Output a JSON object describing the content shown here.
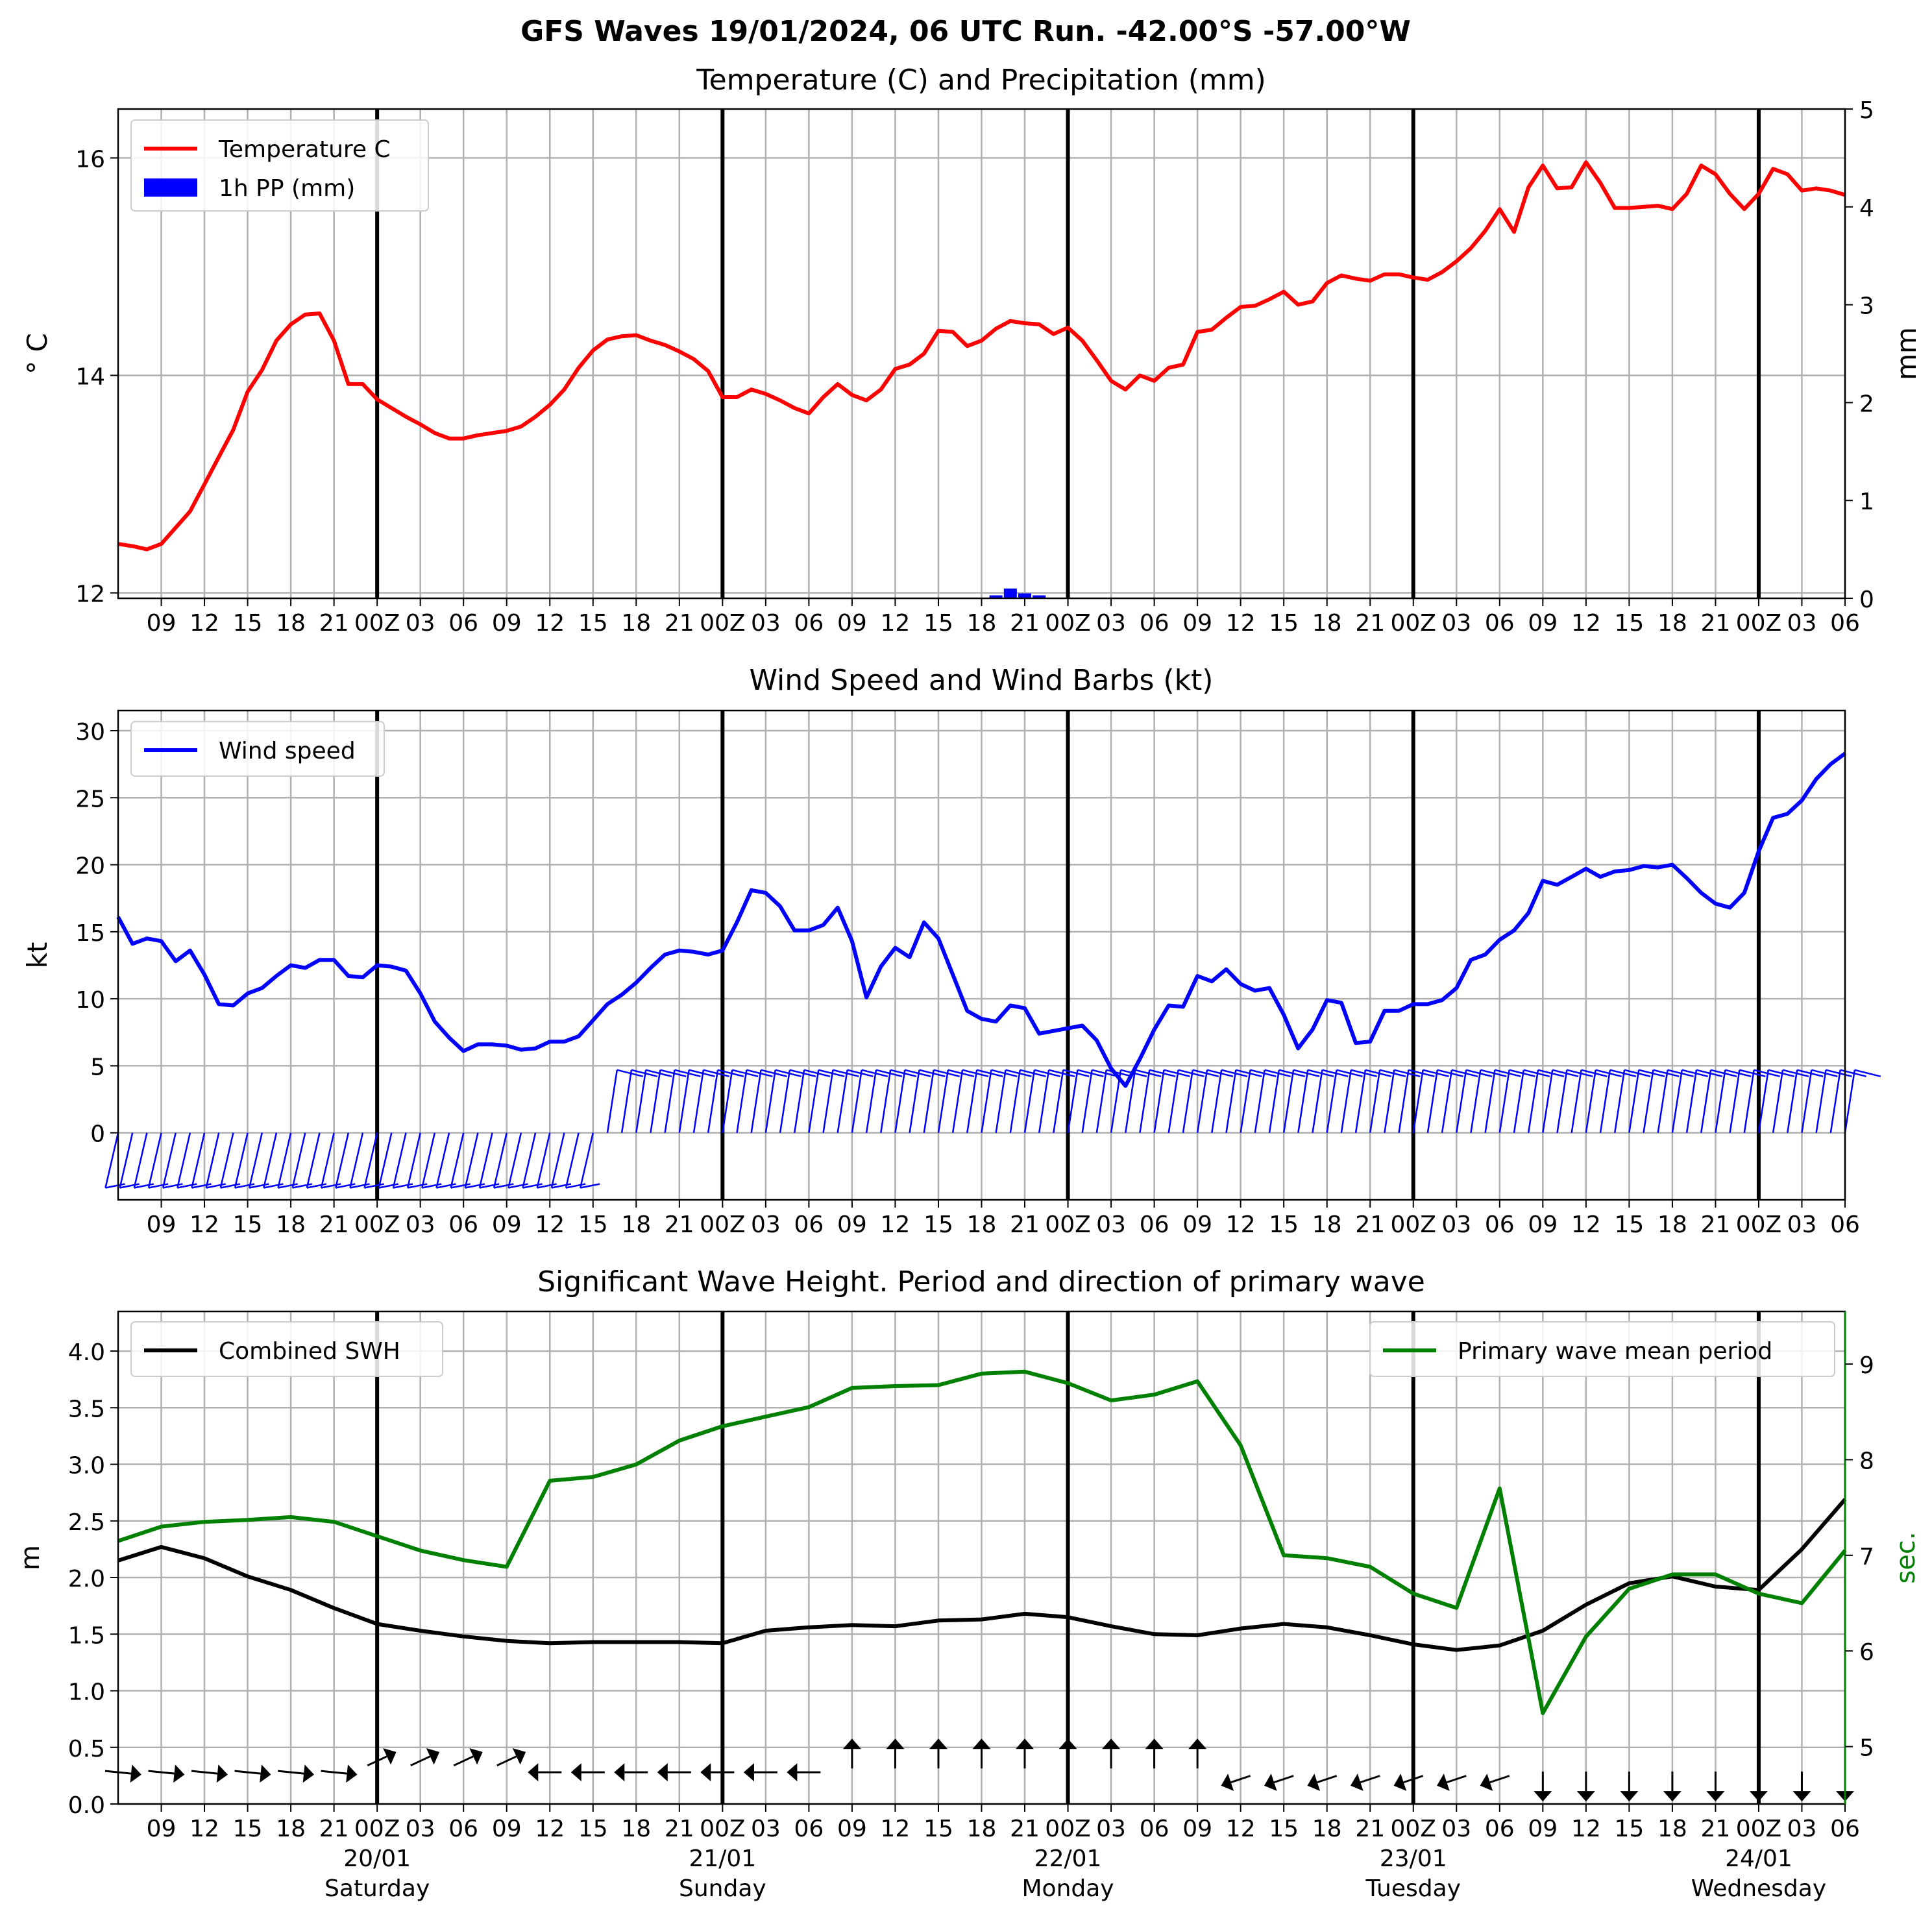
{
  "figure": {
    "title": "GFS Waves 19/01/2024, 06 UTC Run. -42.00°S -57.00°W"
  },
  "colors": {
    "temperature": "#ff0000",
    "precip": "#0000ff",
    "wind": "#0000ff",
    "swh": "#000000",
    "period": "#008000",
    "grid": "#b0b0b0"
  },
  "time_axis": {
    "hours_from": "19/01/2024 06 UTC",
    "hour_ticks": [
      {
        "h": 3,
        "label": "09"
      },
      {
        "h": 6,
        "label": "12"
      },
      {
        "h": 9,
        "label": "15"
      },
      {
        "h": 12,
        "label": "18"
      },
      {
        "h": 15,
        "label": "21"
      },
      {
        "h": 18,
        "label": "00Z"
      },
      {
        "h": 21,
        "label": "03"
      },
      {
        "h": 24,
        "label": "06"
      },
      {
        "h": 27,
        "label": "09"
      },
      {
        "h": 30,
        "label": "12"
      },
      {
        "h": 33,
        "label": "15"
      },
      {
        "h": 36,
        "label": "18"
      },
      {
        "h": 39,
        "label": "21"
      },
      {
        "h": 42,
        "label": "00Z"
      },
      {
        "h": 45,
        "label": "03"
      },
      {
        "h": 48,
        "label": "06"
      },
      {
        "h": 51,
        "label": "09"
      },
      {
        "h": 54,
        "label": "12"
      },
      {
        "h": 57,
        "label": "15"
      },
      {
        "h": 60,
        "label": "18"
      },
      {
        "h": 63,
        "label": "21"
      },
      {
        "h": 66,
        "label": "00Z"
      },
      {
        "h": 69,
        "label": "03"
      },
      {
        "h": 72,
        "label": "06"
      },
      {
        "h": 75,
        "label": "09"
      },
      {
        "h": 78,
        "label": "12"
      },
      {
        "h": 81,
        "label": "15"
      },
      {
        "h": 84,
        "label": "18"
      },
      {
        "h": 87,
        "label": "21"
      },
      {
        "h": 90,
        "label": "00Z"
      },
      {
        "h": 93,
        "label": "03"
      },
      {
        "h": 96,
        "label": "06"
      },
      {
        "h": 99,
        "label": "09"
      },
      {
        "h": 102,
        "label": "12"
      },
      {
        "h": 105,
        "label": "15"
      },
      {
        "h": 108,
        "label": "18"
      },
      {
        "h": 111,
        "label": "21"
      },
      {
        "h": 114,
        "label": "00Z"
      },
      {
        "h": 117,
        "label": "03"
      },
      {
        "h": 120,
        "label": "06"
      }
    ],
    "day_lines": [
      18,
      42,
      66,
      90,
      114
    ],
    "day_labels": [
      {
        "h": 18,
        "date": "20/01",
        "weekday": "Saturday"
      },
      {
        "h": 42,
        "date": "21/01",
        "weekday": "Sunday"
      },
      {
        "h": 66,
        "date": "22/01",
        "weekday": "Monday"
      },
      {
        "h": 90,
        "date": "23/01",
        "weekday": "Tuesday"
      },
      {
        "h": 114,
        "date": "24/01",
        "weekday": "Wednesday"
      }
    ]
  },
  "chart_data": [
    {
      "type": "line",
      "title": "Temperature (C) and Precipitation (mm)",
      "ylabel": "$^\\circ$C",
      "ylabel_right": "mm",
      "ylim": [
        11.95,
        16.45
      ],
      "y_ticks": [
        12,
        14,
        16
      ],
      "ylim_right": [
        0,
        5
      ],
      "y_ticks_right": [
        0,
        1,
        2,
        3,
        4,
        5
      ],
      "legend": [
        "Temperature C",
        "1h PP (mm)"
      ],
      "legend_loc": "upper left",
      "temperature": {
        "name": "Temperature C",
        "x": [
          0,
          1,
          2,
          3,
          4,
          5,
          6,
          7,
          8,
          9,
          10,
          11,
          12,
          13,
          14,
          15,
          16,
          17,
          18,
          19,
          20,
          21,
          22,
          23,
          24,
          25,
          26,
          27,
          28,
          29,
          30,
          31,
          32,
          33,
          34,
          35,
          36,
          37,
          38,
          39,
          40,
          41,
          42,
          43,
          44,
          45,
          46,
          47,
          48,
          49,
          50,
          51,
          52,
          53,
          54,
          55,
          56,
          57,
          58,
          59,
          60,
          61,
          62,
          63,
          64,
          65,
          66,
          67,
          68,
          69,
          70,
          71,
          72,
          73,
          74,
          75,
          76,
          77,
          78,
          79,
          80,
          81,
          82,
          83,
          84,
          85,
          86,
          87,
          88,
          89,
          90,
          91,
          92,
          93,
          94,
          95,
          96,
          97,
          98,
          99,
          100,
          101,
          102,
          103,
          104,
          105,
          106,
          107,
          108,
          109,
          110,
          111,
          112,
          113,
          114,
          115,
          116,
          117,
          118,
          119,
          120
        ],
        "y": [
          12.45,
          12.43,
          12.4,
          12.45,
          12.6,
          12.75,
          13.0,
          13.25,
          13.5,
          13.85,
          14.05,
          14.32,
          14.47,
          14.56,
          14.57,
          14.32,
          13.92,
          13.92,
          13.78,
          13.7,
          13.62,
          13.55,
          13.47,
          13.42,
          13.42,
          13.45,
          13.47,
          13.49,
          13.53,
          13.62,
          13.73,
          13.87,
          14.07,
          14.23,
          14.33,
          14.36,
          14.37,
          14.32,
          14.28,
          14.22,
          14.15,
          14.04,
          13.8,
          13.8,
          13.87,
          13.83,
          13.77,
          13.7,
          13.65,
          13.8,
          13.92,
          13.82,
          13.77,
          13.87,
          14.06,
          14.1,
          14.2,
          14.41,
          14.4,
          14.27,
          14.32,
          14.43,
          14.5,
          14.48,
          14.47,
          14.38,
          14.44,
          14.32,
          14.14,
          13.95,
          13.87,
          14.0,
          13.95,
          14.07,
          14.1,
          14.4,
          14.42,
          14.53,
          14.63,
          14.64,
          14.7,
          14.77,
          14.65,
          14.68,
          14.85,
          14.92,
          14.89,
          14.87,
          14.93,
          14.93,
          14.9,
          14.88,
          14.95,
          15.05,
          15.17,
          15.33,
          15.53,
          15.32,
          15.73,
          15.93,
          15.72,
          15.73,
          15.96,
          15.77,
          15.54,
          15.54,
          15.55,
          15.56,
          15.53,
          15.67,
          15.93,
          15.85,
          15.67,
          15.53,
          15.67,
          15.9,
          15.85,
          15.7,
          15.72,
          15.7,
          15.66
        ]
      },
      "precip": {
        "name": "1h PP (mm)",
        "x": [
          61,
          62,
          63,
          64
        ],
        "y": [
          0.03,
          0.1,
          0.05,
          0.03
        ]
      }
    },
    {
      "type": "line",
      "title": "Wind Speed and Wind Barbs (kt)",
      "ylabel": "kt",
      "ylim": [
        -5,
        31.5
      ],
      "y_ticks": [
        0,
        5,
        10,
        15,
        20,
        25,
        30
      ],
      "legend": [
        "Wind speed"
      ],
      "legend_loc": "upper left",
      "wind_speed": {
        "name": "Wind speed",
        "x": [
          0,
          1,
          2,
          3,
          4,
          5,
          6,
          7,
          8,
          9,
          10,
          11,
          12,
          13,
          14,
          15,
          16,
          17,
          18,
          19,
          20,
          21,
          22,
          23,
          24,
          25,
          26,
          27,
          28,
          29,
          30,
          31,
          32,
          33,
          34,
          35,
          36,
          37,
          38,
          39,
          40,
          41,
          42,
          43,
          44,
          45,
          46,
          47,
          48,
          49,
          50,
          51,
          52,
          53,
          54,
          55,
          56,
          57,
          58,
          59,
          60,
          61,
          62,
          63,
          64,
          65,
          66,
          67,
          68,
          69,
          70,
          71,
          72,
          73,
          74,
          75,
          76,
          77,
          78,
          79,
          80,
          81,
          82,
          83,
          84,
          85,
          86,
          87,
          88,
          89,
          90,
          91,
          92,
          93,
          94,
          95,
          96,
          97,
          98,
          99,
          100,
          101,
          102,
          103,
          104,
          105,
          106,
          107,
          108,
          109,
          110,
          111,
          112,
          113,
          114,
          115,
          116,
          117,
          118,
          119,
          120
        ],
        "y": [
          16.1,
          14.1,
          14.5,
          14.3,
          12.8,
          13.6,
          11.8,
          9.6,
          9.5,
          10.4,
          10.8,
          11.7,
          12.5,
          12.3,
          12.9,
          12.9,
          11.7,
          11.6,
          12.5,
          12.4,
          12.1,
          10.4,
          8.3,
          7.1,
          6.1,
          6.6,
          6.6,
          6.5,
          6.2,
          6.3,
          6.8,
          6.8,
          7.2,
          8.4,
          9.6,
          10.3,
          11.2,
          12.3,
          13.3,
          13.6,
          13.5,
          13.3,
          13.6,
          15.7,
          18.1,
          17.9,
          16.9,
          15.1,
          15.1,
          15.5,
          16.8,
          14.3,
          10.1,
          12.4,
          13.8,
          13.1,
          15.7,
          14.5,
          11.8,
          9.1,
          8.5,
          8.3,
          9.5,
          9.3,
          7.4,
          7.6,
          7.8,
          8.0,
          6.9,
          4.8,
          3.5,
          5.5,
          7.7,
          9.5,
          9.4,
          11.7,
          11.3,
          12.2,
          11.1,
          10.6,
          10.8,
          8.8,
          6.3,
          7.7,
          9.9,
          9.7,
          6.7,
          6.8,
          9.1,
          9.1,
          9.6,
          9.6,
          9.9,
          10.8,
          12.9,
          13.3,
          14.4,
          15.1,
          16.4,
          18.8,
          18.5,
          19.1,
          19.7,
          19.1,
          19.5,
          19.6,
          19.9,
          19.8,
          20.0,
          19.0,
          17.9,
          17.1,
          16.8,
          17.9,
          21.0,
          23.5,
          23.8,
          24.8,
          26.4,
          27.5,
          28.3
        ]
      },
      "barbs_hours": [
        0,
        1,
        2,
        3,
        4,
        5,
        6,
        7,
        8,
        9,
        10,
        11,
        12,
        13,
        14,
        15,
        16,
        17,
        18,
        19,
        20,
        21,
        22,
        23,
        24,
        25,
        26,
        27,
        28,
        29,
        30,
        31,
        32,
        33,
        34,
        35,
        36,
        37,
        38,
        39,
        40,
        41,
        42,
        43,
        44,
        45,
        46,
        47,
        48,
        49,
        50,
        51,
        52,
        53,
        54,
        55,
        56,
        57,
        58,
        59,
        60,
        61,
        62,
        63,
        64,
        65,
        66,
        67,
        68,
        69,
        70,
        71,
        72,
        73,
        74,
        75,
        76,
        77,
        78,
        79,
        80,
        81,
        82,
        83,
        84,
        85,
        86,
        87,
        88,
        89,
        90,
        91,
        92,
        93,
        94,
        95,
        96,
        97,
        98,
        99,
        100,
        101,
        102,
        103,
        104,
        105,
        106,
        107,
        108,
        109,
        110,
        111,
        112,
        113,
        114,
        115,
        116,
        117,
        118,
        119,
        120
      ]
    },
    {
      "type": "line",
      "title": "Significant Wave Height. Period and direction of primary wave",
      "ylabel": "m",
      "ylabel_right": "sec.",
      "ylim": [
        0,
        4.35
      ],
      "y_ticks": [
        0.0,
        0.5,
        1.0,
        1.5,
        2.0,
        2.5,
        3.0,
        3.5,
        4.0
      ],
      "ylim_right": [
        4.4,
        9.55
      ],
      "y_ticks_right": [
        5,
        6,
        7,
        8,
        9
      ],
      "legend": [
        "Combined SWH",
        "Primary wave mean period"
      ],
      "legend_loc": [
        "upper left",
        "upper right"
      ],
      "swh": {
        "name": "Combined SWH",
        "x": [
          0,
          3,
          6,
          9,
          12,
          15,
          18,
          21,
          24,
          27,
          30,
          33,
          36,
          39,
          42,
          45,
          48,
          51,
          54,
          57,
          60,
          63,
          66,
          69,
          72,
          75,
          78,
          81,
          84,
          87,
          90,
          93,
          96,
          99,
          102,
          105,
          108,
          111,
          114,
          117,
          120
        ],
        "y": [
          2.15,
          2.27,
          2.17,
          2.01,
          1.89,
          1.73,
          1.59,
          1.53,
          1.48,
          1.44,
          1.42,
          1.43,
          1.43,
          1.43,
          1.42,
          1.53,
          1.56,
          1.58,
          1.57,
          1.62,
          1.63,
          1.68,
          1.65,
          1.57,
          1.5,
          1.49,
          1.55,
          1.59,
          1.56,
          1.49,
          1.41,
          1.36,
          1.4,
          1.53,
          1.76,
          1.95,
          2.01,
          1.92,
          1.89,
          2.25,
          2.69
        ]
      },
      "period": {
        "name": "Primary wave mean period",
        "x": [
          0,
          3,
          6,
          9,
          12,
          15,
          18,
          21,
          24,
          27,
          30,
          33,
          36,
          39,
          42,
          45,
          48,
          51,
          54,
          57,
          60,
          63,
          66,
          69,
          72,
          75,
          78,
          81,
          84,
          87,
          90,
          93,
          96,
          99,
          102,
          105,
          108,
          111,
          114,
          117,
          120
        ],
        "y": [
          7.15,
          7.3,
          7.35,
          7.37,
          7.4,
          7.35,
          7.2,
          7.05,
          6.95,
          6.88,
          7.78,
          7.82,
          7.95,
          8.2,
          8.35,
          8.45,
          8.55,
          8.75,
          8.77,
          8.78,
          8.9,
          8.92,
          8.8,
          8.62,
          8.68,
          8.82,
          8.15,
          7.0,
          6.97,
          6.88,
          6.6,
          6.45,
          7.7,
          5.35,
          6.15,
          6.65,
          6.8,
          6.8,
          6.6,
          6.5,
          7.05
        ]
      },
      "direction_hours": [
        0,
        3,
        6,
        9,
        12,
        15,
        18,
        21,
        24,
        27,
        30,
        33,
        36,
        39,
        42,
        45,
        48,
        51,
        54,
        57,
        60,
        63,
        66,
        69,
        72,
        75,
        78,
        81,
        84,
        87,
        90,
        93,
        96,
        99,
        102,
        105,
        108,
        111,
        114,
        117,
        120
      ]
    }
  ]
}
